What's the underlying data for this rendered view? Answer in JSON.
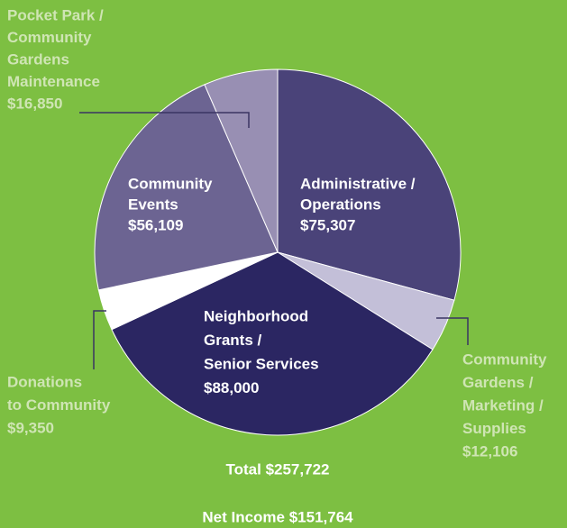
{
  "chart_data": {
    "type": "pie",
    "categories": [
      [
        "Administrative /",
        "Operations"
      ],
      [
        "Community",
        "Gardens /",
        "Marketing /",
        "Supplies"
      ],
      [
        "Neighborhood",
        "Grants /",
        "Senior Services"
      ],
      [
        "Donations",
        "to Community"
      ],
      [
        "Community",
        "Events"
      ],
      [
        "Pocket Park /",
        "Community",
        "Gardens",
        "Maintenance"
      ]
    ],
    "values": [
      75307,
      12106,
      88000,
      9350,
      56109,
      16850
    ],
    "value_labels": [
      "$75,307",
      "$12,106",
      "$88,000",
      "$9,350",
      "$56,109",
      "$16,850"
    ],
    "colors": [
      "#4a4379",
      "#c3bfd8",
      "#2b2662",
      "#ffffff",
      "#6c6492",
      "#988fb3"
    ],
    "annotations": [
      "Total $257,722",
      "Net Income $151,764"
    ]
  }
}
